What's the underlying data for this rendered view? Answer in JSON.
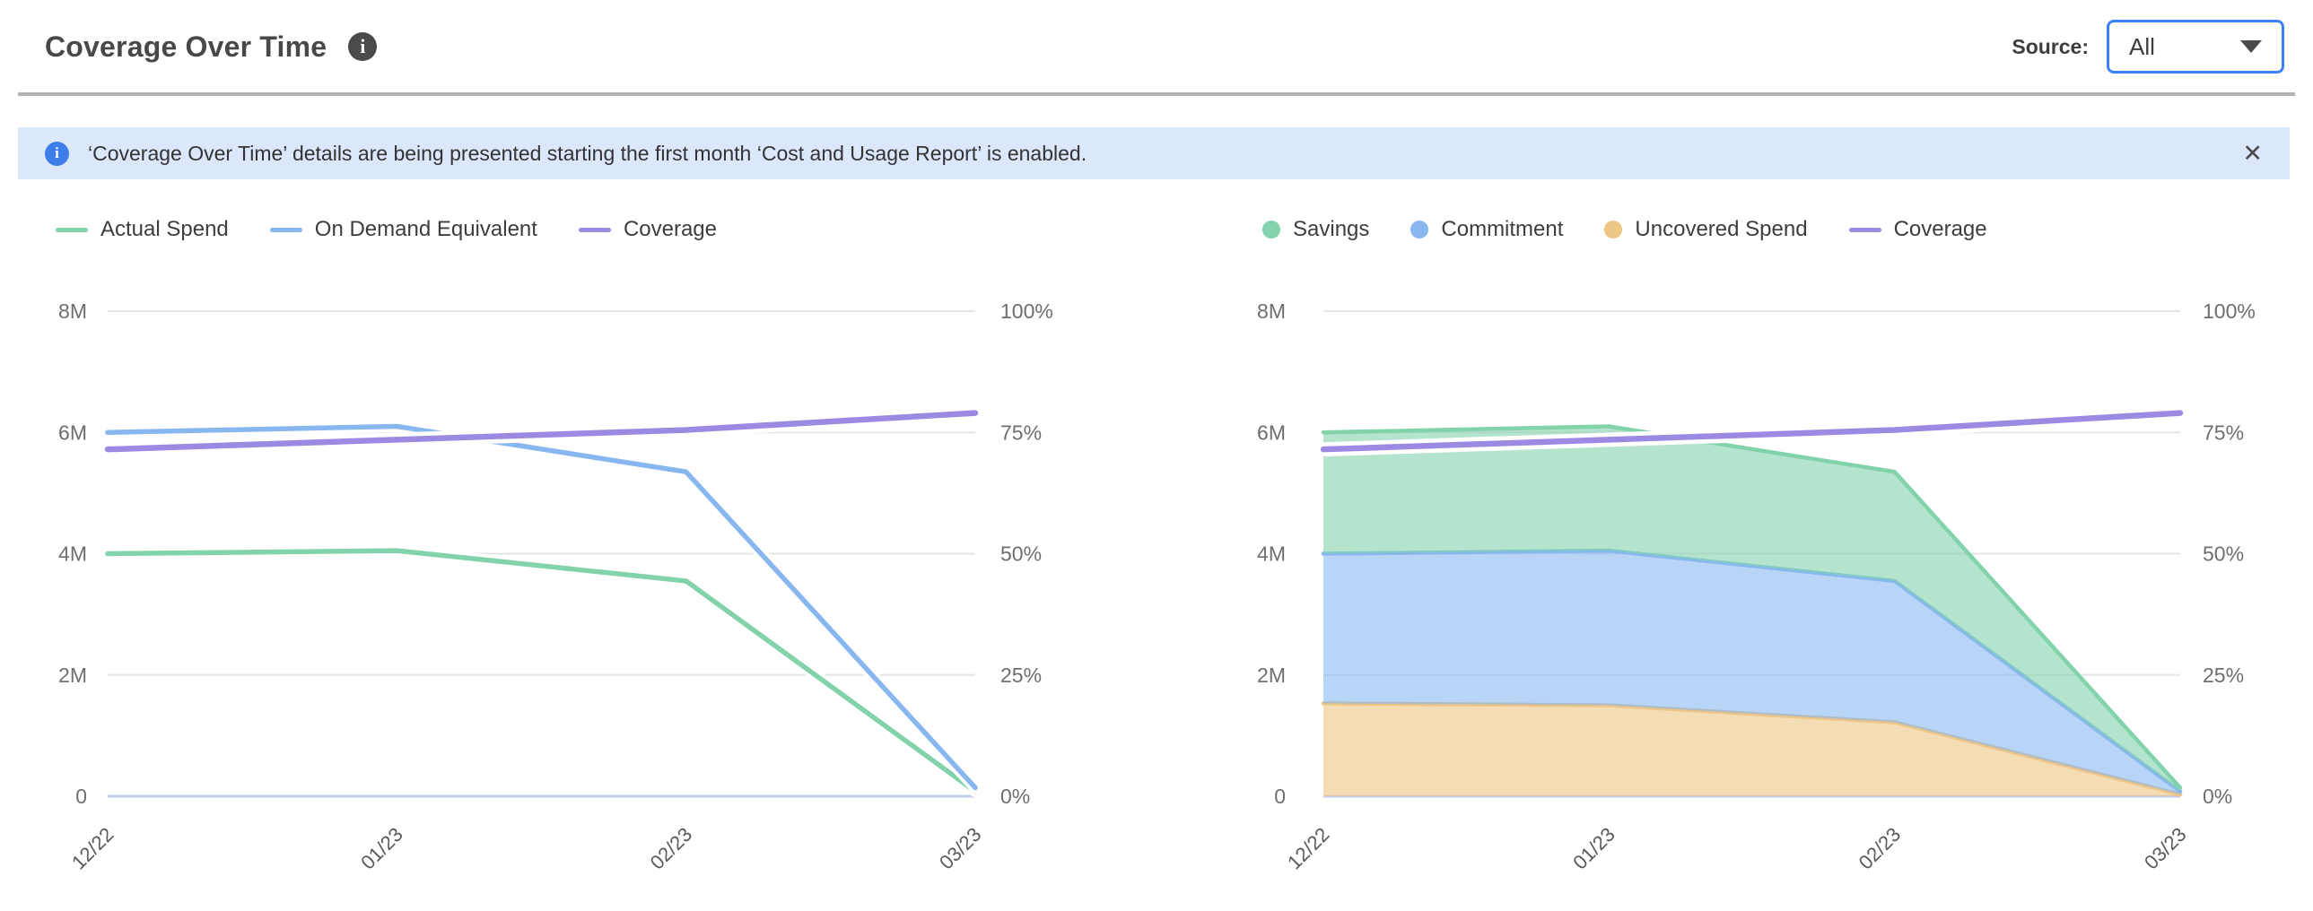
{
  "header": {
    "title": "Coverage Over Time",
    "source_label": "Source:",
    "source_value": "All"
  },
  "banner": {
    "text": "‘Coverage Over Time’ details are being presented starting the first month ‘Cost and Usage Report’ is enabled."
  },
  "icons": {
    "info": "i",
    "close": "✕"
  },
  "colors": {
    "green": "#82d2ac",
    "blue": "#88b7f0",
    "purple": "#9c8ae2",
    "tan": "#edc584",
    "grid": "#e5e5e5",
    "baseline": "#c2cbe9",
    "axis_text": "#6e6e6e",
    "x_text": "#5a5a5a",
    "accent_blue": "#3b82f6",
    "banner_bg": "#dbe7fb",
    "banner_icon_blue": "#3d7ee8"
  },
  "chart_data": [
    {
      "id": "spend-lines",
      "type": "line",
      "categories": [
        "12/22",
        "01/23",
        "02/23",
        "03/23"
      ],
      "series": [
        {
          "name": "Actual Spend",
          "render": "line",
          "axis": "left",
          "color_key": "green",
          "values": [
            4.0,
            4.05,
            3.55,
            0.08
          ]
        },
        {
          "name": "On Demand Equivalent",
          "render": "line",
          "axis": "left",
          "color_key": "blue",
          "values": [
            6.0,
            6.1,
            5.35,
            0.14
          ]
        },
        {
          "name": "Coverage",
          "render": "line",
          "axis": "right",
          "color_key": "purple",
          "values": [
            71.5,
            73.5,
            75.5,
            79.0
          ]
        }
      ],
      "y_left": {
        "min": 0,
        "max": 8,
        "unit": "M",
        "ticks": [
          "0",
          "2M",
          "4M",
          "6M",
          "8M"
        ]
      },
      "y_right": {
        "min": 0,
        "max": 100,
        "unit": "%",
        "ticks": [
          "0%",
          "25%",
          "50%",
          "75%",
          "100%"
        ]
      },
      "legend": [
        {
          "label": "Actual Spend",
          "swatch": "line",
          "color_key": "green"
        },
        {
          "label": "On Demand Equivalent",
          "swatch": "line",
          "color_key": "blue"
        },
        {
          "label": "Coverage",
          "swatch": "line",
          "color_key": "purple"
        }
      ],
      "legend_position": "top-left",
      "grid": true
    },
    {
      "id": "coverage-areas",
      "type": "area",
      "stacked": true,
      "categories": [
        "12/22",
        "01/23",
        "02/23",
        "03/23"
      ],
      "series": [
        {
          "name": "Uncovered Spend",
          "render": "area",
          "axis": "left",
          "color_key": "tan",
          "values": [
            1.53,
            1.5,
            1.22,
            0.03
          ]
        },
        {
          "name": "Commitment",
          "render": "area",
          "axis": "left",
          "color_key": "blue",
          "values": [
            2.47,
            2.55,
            2.33,
            0.05
          ]
        },
        {
          "name": "Savings",
          "render": "area",
          "axis": "left",
          "color_key": "green",
          "values": [
            2.0,
            2.05,
            1.8,
            0.06
          ]
        },
        {
          "name": "Coverage",
          "render": "line",
          "axis": "right",
          "color_key": "purple",
          "values": [
            71.5,
            73.5,
            75.5,
            79.0
          ]
        }
      ],
      "y_left": {
        "min": 0,
        "max": 8,
        "unit": "M",
        "ticks": [
          "0",
          "2M",
          "4M",
          "6M",
          "8M"
        ]
      },
      "y_right": {
        "min": 0,
        "max": 100,
        "unit": "%",
        "ticks": [
          "0%",
          "25%",
          "50%",
          "75%",
          "100%"
        ]
      },
      "legend": [
        {
          "label": "Savings",
          "swatch": "circle",
          "color_key": "green"
        },
        {
          "label": "Commitment",
          "swatch": "circle",
          "color_key": "blue"
        },
        {
          "label": "Uncovered Spend",
          "swatch": "circle",
          "color_key": "tan"
        },
        {
          "label": "Coverage",
          "swatch": "line",
          "color_key": "purple"
        }
      ],
      "legend_position": "top-left",
      "grid": true
    }
  ]
}
